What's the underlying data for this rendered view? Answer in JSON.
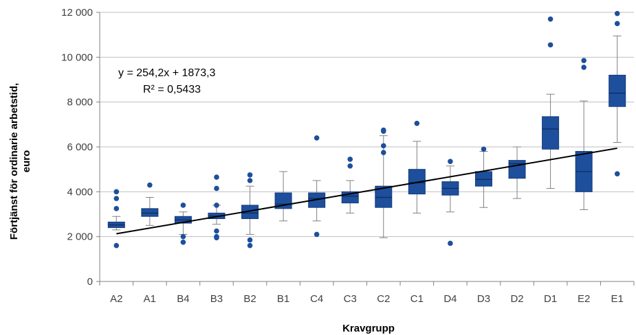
{
  "chart_data": {
    "type": "box",
    "title": "",
    "xlabel": "Kravgrupp",
    "ylabel_line1": "Förtjänst för ordinarie arbetstid,",
    "ylabel_line2": "euro",
    "ylim": [
      0,
      12000
    ],
    "y_ticks": [
      0,
      2000,
      4000,
      6000,
      8000,
      10000,
      12000
    ],
    "y_tick_labels": [
      "0",
      "2 000",
      "4 000",
      "6 000",
      "8 000",
      "10 000",
      "12 000"
    ],
    "grid": true,
    "categories": [
      "A2",
      "A1",
      "B4",
      "B3",
      "B2",
      "B1",
      "C4",
      "C3",
      "C2",
      "C1",
      "D4",
      "D3",
      "D2",
      "D1",
      "E2",
      "E1"
    ],
    "boxes": [
      {
        "category": "A2",
        "whisker_low": 2300,
        "q1": 2400,
        "median": 2520,
        "q3": 2650,
        "whisker_high": 2900,
        "outliers": [
          1600,
          3250,
          3700,
          4000
        ]
      },
      {
        "category": "A1",
        "whisker_low": 2500,
        "q1": 2900,
        "median": 3050,
        "q3": 3250,
        "whisker_high": 3750,
        "outliers": [
          4300
        ]
      },
      {
        "category": "B4",
        "whisker_low": 2100,
        "q1": 2600,
        "median": 2750,
        "q3": 2900,
        "whisker_high": 3100,
        "outliers": [
          1750,
          2000,
          3400
        ]
      },
      {
        "category": "B3",
        "whisker_low": 2550,
        "q1": 2800,
        "median": 2920,
        "q3": 3050,
        "whisker_high": 3400,
        "outliers": [
          1950,
          2000,
          2250,
          3400,
          4150,
          4650
        ]
      },
      {
        "category": "B2",
        "whisker_low": 2100,
        "q1": 2800,
        "median": 3050,
        "q3": 3400,
        "whisker_high": 4250,
        "outliers": [
          1600,
          1850,
          4500,
          4750
        ]
      },
      {
        "category": "B1",
        "whisker_low": 2700,
        "q1": 3250,
        "median": 3450,
        "q3": 3950,
        "whisker_high": 4900,
        "outliers": []
      },
      {
        "category": "C4",
        "whisker_low": 2700,
        "q1": 3300,
        "median": 3700,
        "q3": 3950,
        "whisker_high": 4500,
        "outliers": [
          2100,
          6400
        ]
      },
      {
        "category": "C3",
        "whisker_low": 3050,
        "q1": 3500,
        "median": 3800,
        "q3": 4000,
        "whisker_high": 4500,
        "outliers": [
          5150,
          5450
        ]
      },
      {
        "category": "C2",
        "whisker_low": 1950,
        "q1": 3300,
        "median": 3750,
        "q3": 4250,
        "whisker_high": 6500,
        "outliers": [
          5750,
          6050,
          6700,
          6750
        ]
      },
      {
        "category": "C1",
        "whisker_low": 3050,
        "q1": 3900,
        "median": 4400,
        "q3": 5000,
        "whisker_high": 6250,
        "outliers": [
          7050
        ]
      },
      {
        "category": "D4",
        "whisker_low": 3100,
        "q1": 3850,
        "median": 4150,
        "q3": 4450,
        "whisker_high": 5150,
        "outliers": [
          1700,
          5350
        ]
      },
      {
        "category": "D3",
        "whisker_low": 3300,
        "q1": 4250,
        "median": 4550,
        "q3": 4900,
        "whisker_high": 5800,
        "outliers": [
          5900
        ]
      },
      {
        "category": "D2",
        "whisker_low": 3700,
        "q1": 4600,
        "median": 5250,
        "q3": 5400,
        "whisker_high": 6000,
        "outliers": []
      },
      {
        "category": "D1",
        "whisker_low": 4150,
        "q1": 5900,
        "median": 6800,
        "q3": 7350,
        "whisker_high": 8350,
        "outliers": [
          10550,
          11700
        ]
      },
      {
        "category": "E2",
        "whisker_low": 3200,
        "q1": 4000,
        "median": 4900,
        "q3": 5800,
        "whisker_high": 8050,
        "outliers": [
          9550,
          9850
        ]
      },
      {
        "category": "E1",
        "whisker_low": 6200,
        "q1": 7800,
        "median": 8400,
        "q3": 9200,
        "whisker_high": 10950,
        "outliers": [
          4800,
          11500,
          11950
        ]
      }
    ],
    "trendline": {
      "slope": 254.2,
      "intercept": 1873.3,
      "r_squared": 0.5433
    },
    "annotation_equation": "y = 254,2x + 1873,3",
    "annotation_r2": "R² = 0,5433",
    "colors": {
      "box": "#1D4F9C",
      "box_border": "#153C7A",
      "median": "#0B2A5C",
      "whisker": "#808080",
      "outlier": "#1D4F9C",
      "trendline": "#000000",
      "grid": "#BFBFBF",
      "axis": "#808080"
    }
  }
}
